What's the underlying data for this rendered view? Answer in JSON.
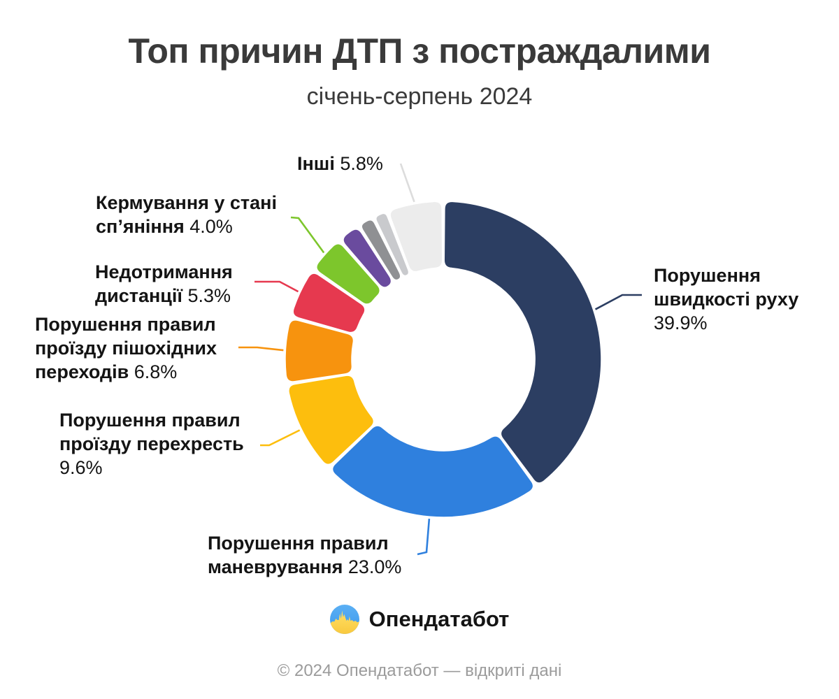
{
  "chart_data": {
    "type": "pie",
    "variant": "donut",
    "title": "Топ причин ДТП з постраждалими",
    "subtitle": "січень-серпень 2024",
    "unit": "%",
    "legend": "none",
    "slices": [
      {
        "name": "Порушення швидкості руху",
        "value": 39.9,
        "pct_label": "39.9%",
        "color": "#2c3e62",
        "label_lines": [
          {
            "b": "Порушення"
          },
          {
            "b": "швидкості руху"
          },
          {
            "r": "39.9%"
          }
        ]
      },
      {
        "name": "Порушення правил маневрування",
        "value": 23.0,
        "pct_label": "23.0%",
        "color": "#2f80de",
        "label_lines": [
          {
            "b": "Порушення правил"
          },
          {
            "b": "маневрування",
            "r": " 23.0%"
          }
        ]
      },
      {
        "name": "Порушення правил проїзду перехресть",
        "value": 9.6,
        "pct_label": "9.6%",
        "color": "#fdbe0d",
        "label_lines": [
          {
            "b": "Порушення правил"
          },
          {
            "b": "проїзду перехресть"
          },
          {
            "r": "9.6%"
          }
        ]
      },
      {
        "name": "Порушення правил проїзду пішохідних переходів",
        "value": 6.8,
        "pct_label": "6.8%",
        "color": "#f7930e",
        "label_lines": [
          {
            "b": "Порушення правил"
          },
          {
            "b": "проїзду пішохідних"
          },
          {
            "b": "переходів",
            "r": " 6.8%"
          }
        ]
      },
      {
        "name": "Недотримання дистанції",
        "value": 5.3,
        "pct_label": "5.3%",
        "color": "#e6394f",
        "label_lines": [
          {
            "b": "Недотримання"
          },
          {
            "b": "дистанції",
            "r": " 5.3%"
          }
        ]
      },
      {
        "name": "Кермування у стані сп’яніння",
        "value": 4.0,
        "pct_label": "4.0%",
        "color": "#7dc62c",
        "label_lines": [
          {
            "b": "Кермування у стані"
          },
          {
            "b": "сп’яніння",
            "r": " 4.0%"
          }
        ]
      },
      {
        "name": "",
        "value": 2.4,
        "pct_label": "",
        "color": "#6a4b9e",
        "label_lines": []
      },
      {
        "name": "",
        "value": 1.7,
        "pct_label": "",
        "color": "#8f9093",
        "label_lines": []
      },
      {
        "name": "",
        "value": 1.5,
        "pct_label": "",
        "color": "#c9cacd",
        "label_lines": []
      },
      {
        "name": "Інші",
        "value": 5.8,
        "pct_label": "5.8%",
        "color": "#ececec",
        "label_lines": [
          {
            "b": "Інші",
            "r": " 5.8%"
          }
        ]
      }
    ]
  },
  "logo": {
    "text": "Опендатабот"
  },
  "footer": {
    "text": "© 2024 Опендатабот — відкриті дані"
  }
}
